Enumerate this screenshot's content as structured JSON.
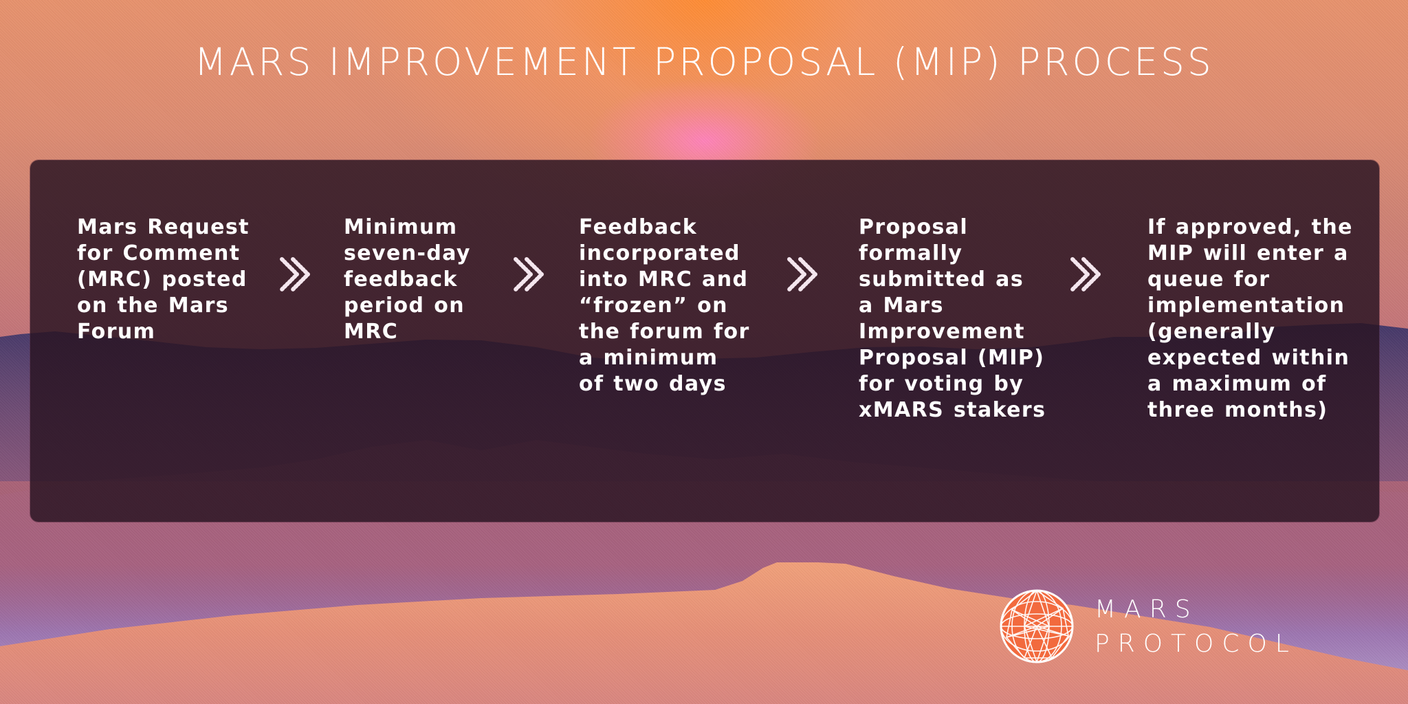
{
  "title": "MARS IMPROVEMENT PROPOSAL (MIP) PROCESS",
  "steps": [
    {
      "text": "Mars Request for Comment (MRC) posted on the Mars Forum"
    },
    {
      "text": "Minimum seven-day feedback period on MRC"
    },
    {
      "text": "Feedback incorporated into MRC and “frozen” on the forum for a minimum of two days"
    },
    {
      "text": "Proposal formally submitted as a Mars Improvement Proposal (MIP) for voting by xMARS stakers"
    },
    {
      "text": "If approved, the MIP will enter a queue for implementation (generally expected within a maximum of three months)"
    }
  ],
  "arrows": [
    {
      "icon": "chevron-right-icon"
    },
    {
      "icon": "chevron-right-icon"
    },
    {
      "icon": "chevron-right-icon"
    },
    {
      "icon": "chevron-right-icon"
    }
  ],
  "logo": {
    "icon": "geodesic-sphere-icon",
    "line1": "MARS",
    "line2": "PROTOCOL"
  },
  "colors": {
    "panel": "#2a1422",
    "text": "#ffffff",
    "logo_mark": "#ff6a3d"
  }
}
